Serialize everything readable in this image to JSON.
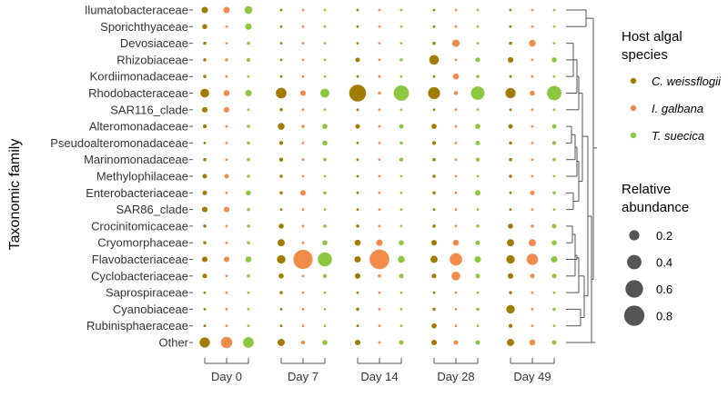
{
  "chart_data": {
    "type": "bubble",
    "ylabel": "Taxonomic family",
    "families": [
      "Ilumatobacteraceae",
      "Sporichthyaceae",
      "Devosiaceae",
      "Rhizobiaceae",
      "Kordiimonadaceae",
      "Rhodobacteraceae",
      "SAR116_clade",
      "Alteromonadaceae",
      "Pseudoalteromonadaceae",
      "Marinomonadaceae",
      "Methylophilaceae",
      "Enterobacteriaceae",
      "SAR86_clade",
      "Crocinitomicaceae",
      "Cryomorphaceae",
      "Flavobacteriaceae",
      "Cyclobacteriaceae",
      "Saprospiraceae",
      "Cyanobiaceae",
      "Rubinisphaeraceae",
      "Other"
    ],
    "days": [
      "Day 0",
      "Day 7",
      "Day 14",
      "Day 28",
      "Day 49"
    ],
    "species": [
      "C. weissflogii",
      "I. galbana",
      "T. suecica"
    ],
    "colors": {
      "C. weissflogii": "#A17B02",
      "I. galbana": "#F28C4A",
      "T. suecica": "#8DC63F"
    },
    "legend": {
      "host_title": "Host algal species",
      "size_title": "Relative abundance",
      "sizes": [
        0.2,
        0.4,
        0.6,
        0.8
      ],
      "size_labels": [
        "0.2",
        "0.4",
        "0.6",
        "0.8"
      ]
    },
    "values": {
      "Day 0": {
        "C. weissflogii": [
          0.08,
          0.05,
          0.02,
          0.02,
          0.02,
          0.15,
          0.06,
          0.03,
          0.01,
          0.02,
          0.04,
          0.04,
          0.06,
          0.02,
          0.02,
          0.06,
          0.04,
          0.01,
          0.01,
          0.01,
          0.2
        ],
        "I. galbana": [
          0.08,
          0.01,
          0.01,
          0.02,
          0.01,
          0.07,
          0.06,
          0.01,
          0.01,
          0.01,
          0.04,
          0.01,
          0.06,
          0.01,
          0.01,
          0.06,
          0.01,
          0.01,
          0.01,
          0.01,
          0.25
        ],
        "T. suecica": [
          0.12,
          0.08,
          0.02,
          0.03,
          0.01,
          0.08,
          0.01,
          0.02,
          0.02,
          0.02,
          0.02,
          0.05,
          0.02,
          0.02,
          0.02,
          0.07,
          0.02,
          0.01,
          0.01,
          0.01,
          0.22
        ]
      },
      "Day 7": {
        "C. weissflogii": [
          0.01,
          0.01,
          0.01,
          0.01,
          0.01,
          0.22,
          0.02,
          0.09,
          0.03,
          0.03,
          0.02,
          0.02,
          0.01,
          0.05,
          0.1,
          0.14,
          0.05,
          0.02,
          0.01,
          0.01,
          0.1
        ],
        "I. galbana": [
          0.01,
          0.01,
          0.01,
          0.01,
          0.01,
          0.06,
          0.01,
          0.02,
          0.01,
          0.01,
          0.01,
          0.06,
          0.01,
          0.01,
          0.01,
          0.72,
          0.01,
          0.01,
          0.01,
          0.01,
          0.03
        ],
        "T. suecica": [
          0.01,
          0.01,
          0.01,
          0.01,
          0.01,
          0.16,
          0.01,
          0.05,
          0.05,
          0.02,
          0.01,
          0.02,
          0.01,
          0.02,
          0.05,
          0.38,
          0.03,
          0.01,
          0.01,
          0.01,
          0.05
        ]
      },
      "Day 14": {
        "C. weissflogii": [
          0.01,
          0.01,
          0.01,
          0.04,
          0.01,
          0.55,
          0.01,
          0.04,
          0.01,
          0.01,
          0.01,
          0.01,
          0.01,
          0.02,
          0.07,
          0.08,
          0.06,
          0.01,
          0.02,
          0.01,
          0.06
        ],
        "I. galbana": [
          0.01,
          0.01,
          0.01,
          0.01,
          0.01,
          0.02,
          0.01,
          0.01,
          0.01,
          0.01,
          0.01,
          0.01,
          0.01,
          0.01,
          0.08,
          0.75,
          0.02,
          0.01,
          0.01,
          0.01,
          0.01
        ],
        "T. suecica": [
          0.01,
          0.01,
          0.01,
          0.02,
          0.01,
          0.45,
          0.01,
          0.04,
          0.02,
          0.03,
          0.01,
          0.01,
          0.01,
          0.01,
          0.05,
          0.09,
          0.04,
          0.01,
          0.01,
          0.01,
          0.04
        ]
      },
      "Day 28": {
        "C. weissflogii": [
          0.01,
          0.01,
          0.02,
          0.18,
          0.01,
          0.28,
          0.01,
          0.05,
          0.03,
          0.02,
          0.02,
          0.02,
          0.01,
          0.02,
          0.06,
          0.1,
          0.04,
          0.01,
          0.02,
          0.05,
          0.06
        ],
        "I. galbana": [
          0.01,
          0.01,
          0.11,
          0.01,
          0.07,
          0.03,
          0.01,
          0.01,
          0.01,
          0.01,
          0.01,
          0.01,
          0.01,
          0.01,
          0.07,
          0.3,
          0.15,
          0.01,
          0.01,
          0.01,
          0.04
        ],
        "T. suecica": [
          0.01,
          0.01,
          0.01,
          0.04,
          0.02,
          0.35,
          0.01,
          0.05,
          0.04,
          0.03,
          0.01,
          0.06,
          0.01,
          0.02,
          0.04,
          0.08,
          0.04,
          0.01,
          0.02,
          0.01,
          0.04
        ]
      },
      "Day 49": {
        "C. weissflogii": [
          0.01,
          0.01,
          0.02,
          0.06,
          0.01,
          0.2,
          0.01,
          0.04,
          0.02,
          0.02,
          0.02,
          0.01,
          0.01,
          0.05,
          0.1,
          0.14,
          0.06,
          0.02,
          0.14,
          0.03,
          0.1
        ],
        "I. galbana": [
          0.01,
          0.01,
          0.09,
          0.01,
          0.01,
          0.05,
          0.01,
          0.01,
          0.01,
          0.01,
          0.01,
          0.04,
          0.01,
          0.02,
          0.1,
          0.25,
          0.04,
          0.01,
          0.01,
          0.01,
          0.07
        ],
        "T. suecica": [
          0.01,
          0.01,
          0.01,
          0.05,
          0.01,
          0.4,
          0.01,
          0.04,
          0.03,
          0.02,
          0.01,
          0.02,
          0.01,
          0.04,
          0.05,
          0.08,
          0.04,
          0.01,
          0.02,
          0.01,
          0.04
        ]
      }
    }
  }
}
